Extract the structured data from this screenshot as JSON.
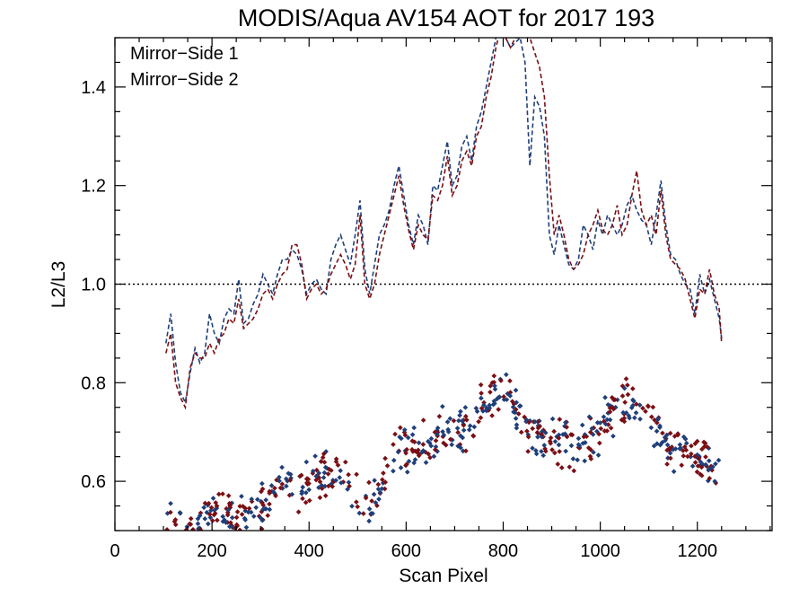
{
  "chart_data": {
    "type": "line",
    "title": "MODIS/Aqua AV154 AOT for 2017 193",
    "xlabel": "Scan Pixel",
    "ylabel": "L2/L3",
    "xlim": [
      0,
      1354
    ],
    "ylim": [
      0.5,
      1.5
    ],
    "x_ticks": [
      0,
      200,
      400,
      600,
      800,
      1000,
      1200
    ],
    "y_ticks": [
      0.6,
      0.8,
      1.0,
      1.2,
      1.4
    ],
    "x_tick_labels": [
      "0",
      "200",
      "400",
      "600",
      "800",
      "1000",
      "1200"
    ],
    "y_tick_labels": [
      "0.6",
      "0.8",
      "1.0",
      "1.2",
      "1.4"
    ],
    "reference_line": 1.0,
    "legend_position": "top-left",
    "series": [
      {
        "name": "Mirror−Side 1",
        "color": "#1f3f7a",
        "style": "dashed",
        "x": [
          105,
          115,
          125,
          135,
          145,
          155,
          165,
          175,
          185,
          195,
          205,
          215,
          225,
          235,
          245,
          255,
          265,
          275,
          285,
          295,
          305,
          315,
          325,
          335,
          345,
          355,
          365,
          375,
          385,
          395,
          405,
          415,
          425,
          435,
          445,
          455,
          465,
          475,
          485,
          495,
          505,
          515,
          525,
          535,
          545,
          555,
          565,
          575,
          585,
          595,
          605,
          615,
          625,
          635,
          645,
          655,
          665,
          675,
          685,
          695,
          705,
          715,
          725,
          735,
          745,
          755,
          765,
          775,
          785,
          795,
          805,
          815,
          825,
          835,
          845,
          855,
          865,
          875,
          885,
          895,
          905,
          915,
          925,
          935,
          945,
          955,
          965,
          975,
          985,
          995,
          1005,
          1015,
          1025,
          1035,
          1045,
          1055,
          1065,
          1075,
          1085,
          1095,
          1105,
          1115,
          1125,
          1135,
          1145,
          1155,
          1165,
          1175,
          1185,
          1195,
          1205,
          1215,
          1225,
          1235,
          1245,
          1250
        ],
        "y": [
          0.88,
          0.94,
          0.84,
          0.78,
          0.76,
          0.82,
          0.87,
          0.84,
          0.86,
          0.94,
          0.9,
          0.88,
          0.93,
          0.95,
          0.94,
          1.01,
          0.92,
          0.93,
          0.96,
          0.98,
          1.02,
          1.0,
          0.98,
          1.02,
          1.05,
          1.05,
          1.07,
          1.06,
          1.03,
          0.98,
          1.0,
          1.01,
          0.99,
          0.98,
          1.05,
          1.08,
          1.1,
          1.07,
          1.04,
          1.1,
          1.17,
          1.03,
          0.98,
          1.04,
          1.1,
          1.12,
          1.15,
          1.2,
          1.24,
          1.18,
          1.12,
          1.08,
          1.14,
          1.12,
          1.08,
          1.2,
          1.19,
          1.24,
          1.29,
          1.2,
          1.22,
          1.28,
          1.3,
          1.25,
          1.32,
          1.35,
          1.4,
          1.45,
          1.5,
          1.52,
          1.5,
          1.48,
          1.49,
          1.5,
          1.45,
          1.24,
          1.38,
          1.36,
          1.3,
          1.1,
          1.06,
          1.12,
          1.08,
          1.04,
          1.03,
          1.05,
          1.12,
          1.1,
          1.07,
          1.13,
          1.1,
          1.14,
          1.12,
          1.1,
          1.12,
          1.16,
          1.18,
          1.15,
          1.13,
          1.12,
          1.08,
          1.14,
          1.21,
          1.12,
          1.06,
          1.05,
          1.02,
          1.0,
          0.99,
          0.94,
          1.02,
          0.98,
          1.01,
          0.97,
          0.93,
          0.89
        ]
      },
      {
        "name": "Mirror−Side 2",
        "color": "#7a0f14",
        "style": "dashed",
        "x": [
          105,
          115,
          125,
          135,
          145,
          155,
          165,
          175,
          185,
          195,
          205,
          215,
          225,
          235,
          245,
          255,
          265,
          275,
          285,
          295,
          305,
          315,
          325,
          335,
          345,
          355,
          365,
          375,
          385,
          395,
          405,
          415,
          425,
          435,
          445,
          455,
          465,
          475,
          485,
          495,
          505,
          515,
          525,
          535,
          545,
          555,
          565,
          575,
          585,
          595,
          605,
          615,
          625,
          635,
          645,
          655,
          665,
          675,
          685,
          695,
          705,
          715,
          725,
          735,
          745,
          755,
          765,
          775,
          785,
          795,
          805,
          815,
          825,
          835,
          845,
          855,
          865,
          875,
          885,
          895,
          905,
          915,
          925,
          935,
          945,
          955,
          965,
          975,
          985,
          995,
          1005,
          1015,
          1025,
          1035,
          1045,
          1055,
          1065,
          1075,
          1085,
          1095,
          1105,
          1115,
          1125,
          1135,
          1145,
          1155,
          1165,
          1175,
          1185,
          1195,
          1205,
          1215,
          1225,
          1235,
          1245,
          1250
        ],
        "y": [
          0.86,
          0.9,
          0.8,
          0.77,
          0.75,
          0.83,
          0.86,
          0.85,
          0.85,
          0.88,
          0.86,
          0.89,
          0.9,
          0.93,
          0.92,
          0.97,
          0.91,
          0.92,
          0.93,
          0.95,
          0.98,
          0.99,
          0.97,
          1.0,
          1.02,
          1.03,
          1.08,
          1.08,
          1.04,
          0.97,
          0.99,
          1.0,
          0.98,
          0.99,
          1.02,
          1.04,
          1.06,
          1.04,
          1.01,
          1.04,
          1.14,
          1.0,
          0.97,
          1.0,
          1.06,
          1.1,
          1.14,
          1.18,
          1.22,
          1.16,
          1.11,
          1.07,
          1.12,
          1.1,
          1.09,
          1.18,
          1.17,
          1.2,
          1.26,
          1.18,
          1.2,
          1.25,
          1.27,
          1.24,
          1.3,
          1.32,
          1.38,
          1.42,
          1.48,
          1.52,
          1.5,
          1.48,
          1.5,
          1.5,
          1.52,
          1.5,
          1.47,
          1.44,
          1.38,
          1.22,
          1.1,
          1.14,
          1.1,
          1.05,
          1.03,
          1.04,
          1.06,
          1.1,
          1.12,
          1.15,
          1.11,
          1.1,
          1.12,
          1.16,
          1.1,
          1.12,
          1.18,
          1.23,
          1.15,
          1.12,
          1.14,
          1.1,
          1.19,
          1.1,
          1.05,
          1.04,
          1.03,
          1.01,
          0.97,
          0.93,
          0.99,
          0.98,
          1.03,
          0.98,
          0.95,
          0.88
        ]
      }
    ],
    "scatter": {
      "x_start": 105,
      "x_end": 1250,
      "count": 640,
      "trend_x": [
        105,
        130,
        150,
        170,
        190,
        210,
        230,
        250,
        270,
        290,
        310,
        330,
        350,
        370,
        390,
        410,
        430,
        450,
        470,
        490,
        510,
        530,
        550,
        570,
        590,
        610,
        630,
        650,
        670,
        690,
        710,
        730,
        750,
        770,
        790,
        810,
        830,
        850,
        870,
        890,
        910,
        930,
        950,
        970,
        990,
        1010,
        1030,
        1050,
        1070,
        1090,
        1110,
        1130,
        1150,
        1170,
        1190,
        1210,
        1230,
        1250
      ],
      "trend_y": [
        0.525,
        0.51,
        0.5,
        0.515,
        0.53,
        0.545,
        0.53,
        0.52,
        0.53,
        0.545,
        0.555,
        0.57,
        0.59,
        0.595,
        0.585,
        0.6,
        0.615,
        0.62,
        0.61,
        0.58,
        0.56,
        0.545,
        0.6,
        0.65,
        0.67,
        0.665,
        0.66,
        0.685,
        0.7,
        0.695,
        0.715,
        0.72,
        0.74,
        0.76,
        0.78,
        0.775,
        0.73,
        0.705,
        0.7,
        0.69,
        0.675,
        0.68,
        0.665,
        0.68,
        0.7,
        0.72,
        0.74,
        0.755,
        0.765,
        0.75,
        0.72,
        0.69,
        0.67,
        0.665,
        0.655,
        0.64,
        0.625,
        0.605
      ],
      "spread": 0.022
    }
  }
}
